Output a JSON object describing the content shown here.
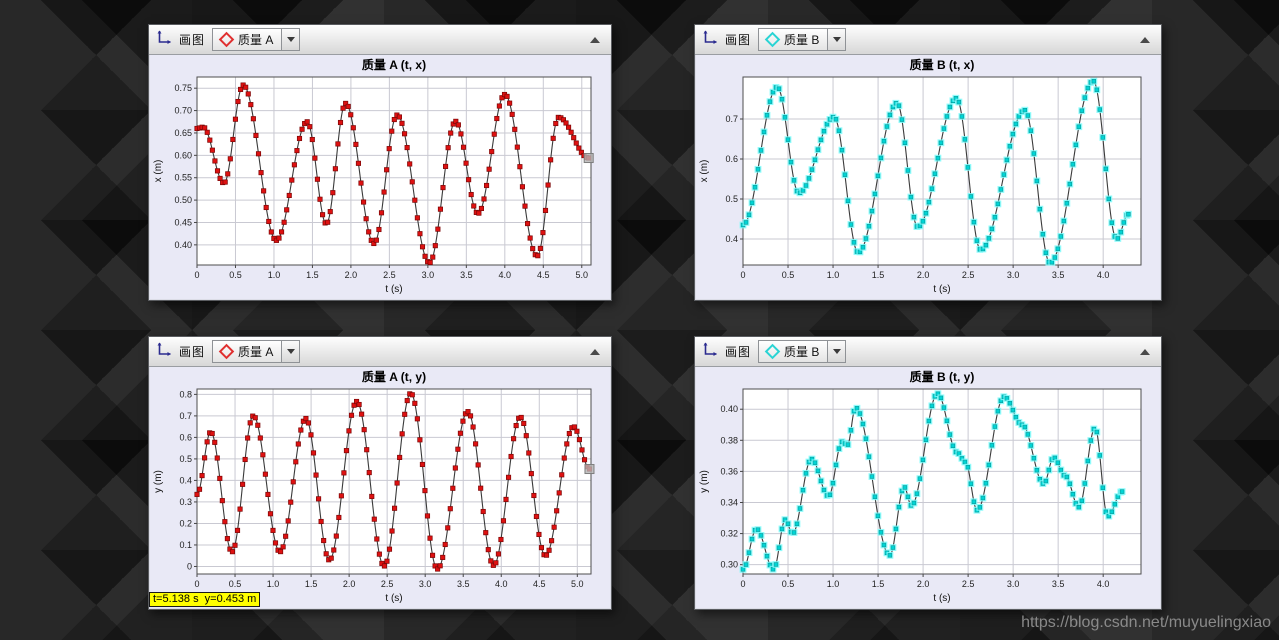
{
  "watermark": "https://blog.csdn.net/muyuelingxiao",
  "windows": [
    {
      "name": "mass-a-t-x",
      "toolbar": {
        "plot_label": "画图",
        "series_label": "质量 A",
        "series_color": "#e03030"
      },
      "tooltip_text": null,
      "chart": {
        "type": "line",
        "title": "质量 A (t, x)",
        "xlabel": "t (s)",
        "ylabel": "x (m)",
        "x_range": [
          0,
          5.12
        ],
        "y_range": [
          0.355,
          0.775
        ],
        "x_tick_vals": [
          0,
          0.5,
          1,
          1.5,
          2,
          2.5,
          3,
          3.5,
          4,
          4.5,
          5
        ],
        "x_tick_labels": [
          "0",
          "0.5",
          "1.0",
          "1.5",
          "2.0",
          "2.5",
          "3.0",
          "3.5",
          "4.0",
          "4.5",
          "5.0"
        ],
        "y_tick_vals": [
          0.4,
          0.45,
          0.5,
          0.55,
          0.6,
          0.65,
          0.7,
          0.75
        ],
        "y_tick_labels": [
          "0.40",
          "0.45",
          "0.50",
          "0.55",
          "0.60",
          "0.65",
          "0.70",
          "0.75"
        ],
        "marker_style": "red-square",
        "marker_step": 0.0333,
        "end_handle": true,
        "keypoints": [
          [
            0,
            0.66
          ],
          [
            0.08,
            0.663
          ],
          [
            0.35,
            0.538
          ],
          [
            0.6,
            0.757
          ],
          [
            1.03,
            0.41
          ],
          [
            1.43,
            0.675
          ],
          [
            1.68,
            0.447
          ],
          [
            1.93,
            0.716
          ],
          [
            2.3,
            0.403
          ],
          [
            2.6,
            0.69
          ],
          [
            3.02,
            0.36
          ],
          [
            3.36,
            0.676
          ],
          [
            3.65,
            0.47
          ],
          [
            4.0,
            0.736
          ],
          [
            4.42,
            0.375
          ],
          [
            4.7,
            0.685
          ],
          [
            5.09,
            0.594
          ]
        ]
      }
    },
    {
      "name": "mass-b-t-x",
      "toolbar": {
        "plot_label": "画图",
        "series_label": "质量 B",
        "series_color": "#2ad4d4"
      },
      "tooltip_text": null,
      "chart": {
        "type": "line",
        "title": "质量 B (t, x)",
        "xlabel": "t (s)",
        "ylabel": "x (m)",
        "x_range": [
          0,
          4.42
        ],
        "y_range": [
          0.335,
          0.805
        ],
        "x_tick_vals": [
          0,
          0.5,
          1,
          1.5,
          2,
          2.5,
          3,
          3.5,
          4
        ],
        "x_tick_labels": [
          "0",
          "0.5",
          "1.0",
          "1.5",
          "2.0",
          "2.5",
          "3.0",
          "3.5",
          "4.0"
        ],
        "y_tick_vals": [
          0.4,
          0.5,
          0.6,
          0.7
        ],
        "y_tick_labels": [
          "0.4",
          "0.5",
          "0.6",
          "0.7"
        ],
        "marker_style": "cyan-square",
        "marker_step": 0.0333,
        "end_handle": false,
        "keypoints": [
          [
            0,
            0.435
          ],
          [
            0.38,
            0.78
          ],
          [
            0.62,
            0.515
          ],
          [
            1.01,
            0.705
          ],
          [
            1.28,
            0.366
          ],
          [
            1.71,
            0.74
          ],
          [
            1.94,
            0.43
          ],
          [
            2.37,
            0.752
          ],
          [
            2.64,
            0.373
          ],
          [
            3.13,
            0.722
          ],
          [
            3.41,
            0.34
          ],
          [
            3.89,
            0.795
          ],
          [
            4.15,
            0.4
          ],
          [
            4.28,
            0.462
          ]
        ]
      }
    },
    {
      "name": "mass-a-t-y",
      "toolbar": {
        "plot_label": "画图",
        "series_label": "质量 A",
        "series_color": "#e03030"
      },
      "tooltip_text": "t=5.138 s  y=0.453 m",
      "chart": {
        "type": "line",
        "title": "质量 A (t, y)",
        "xlabel": "t (s)",
        "ylabel": "y (m)",
        "x_range": [
          0,
          5.18
        ],
        "y_range": [
          -0.035,
          0.825
        ],
        "x_tick_vals": [
          0,
          0.5,
          1,
          1.5,
          2,
          2.5,
          3,
          3.5,
          4,
          4.5,
          5
        ],
        "x_tick_labels": [
          "0",
          "0.5",
          "1.0",
          "1.5",
          "2.0",
          "2.5",
          "3.0",
          "3.5",
          "4.0",
          "4.5",
          "5.0"
        ],
        "y_tick_vals": [
          0,
          0.1,
          0.2,
          0.3,
          0.4,
          0.5,
          0.6,
          0.7,
          0.8
        ],
        "y_tick_labels": [
          "0",
          "0.1",
          "0.2",
          "0.3",
          "0.4",
          "0.5",
          "0.6",
          "0.7",
          "0.8"
        ],
        "marker_style": "red-square",
        "marker_step": 0.0333,
        "end_handle": true,
        "keypoints": [
          [
            0,
            0.335
          ],
          [
            0.18,
            0.625
          ],
          [
            0.46,
            0.068
          ],
          [
            0.74,
            0.7
          ],
          [
            1.09,
            0.068
          ],
          [
            1.43,
            0.688
          ],
          [
            1.74,
            0.03
          ],
          [
            2.1,
            0.767
          ],
          [
            2.46,
            0.002
          ],
          [
            2.81,
            0.805
          ],
          [
            3.16,
            -0.012
          ],
          [
            3.56,
            0.72
          ],
          [
            3.9,
            0.005
          ],
          [
            4.25,
            0.695
          ],
          [
            4.58,
            0.05
          ],
          [
            4.95,
            0.65
          ],
          [
            5.16,
            0.453
          ]
        ]
      }
    },
    {
      "name": "mass-b-t-y",
      "toolbar": {
        "plot_label": "画图",
        "series_label": "质量 B",
        "series_color": "#2ad4d4"
      },
      "tooltip_text": null,
      "chart": {
        "type": "line",
        "title": "质量 B (t, y)",
        "xlabel": "t (s)",
        "ylabel": "y (m)",
        "x_range": [
          0,
          4.42
        ],
        "y_range": [
          0.294,
          0.413
        ],
        "x_tick_vals": [
          0,
          0.5,
          1,
          1.5,
          2,
          2.5,
          3,
          3.5,
          4
        ],
        "x_tick_labels": [
          "0",
          "0.5",
          "1.0",
          "1.5",
          "2.0",
          "2.5",
          "3.0",
          "3.5",
          "4.0"
        ],
        "y_tick_vals": [
          0.3,
          0.32,
          0.34,
          0.36,
          0.38,
          0.4
        ],
        "y_tick_labels": [
          "0.30",
          "0.32",
          "0.34",
          "0.36",
          "0.38",
          "0.40"
        ],
        "marker_style": "cyan-square",
        "marker_step": 0.0333,
        "end_handle": false,
        "keypoints": [
          [
            0,
            0.297
          ],
          [
            0.15,
            0.323
          ],
          [
            0.34,
            0.297
          ],
          [
            0.47,
            0.329
          ],
          [
            0.55,
            0.32
          ],
          [
            0.76,
            0.368
          ],
          [
            0.95,
            0.344
          ],
          [
            1.1,
            0.379
          ],
          [
            1.16,
            0.377
          ],
          [
            1.25,
            0.401
          ],
          [
            1.63,
            0.306
          ],
          [
            1.79,
            0.35
          ],
          [
            1.87,
            0.338
          ],
          [
            2.16,
            0.41
          ],
          [
            2.38,
            0.372
          ],
          [
            2.47,
            0.366
          ],
          [
            2.6,
            0.335
          ],
          [
            2.9,
            0.408
          ],
          [
            3.1,
            0.39
          ],
          [
            3.34,
            0.352
          ],
          [
            3.45,
            0.369
          ],
          [
            3.58,
            0.357
          ],
          [
            3.73,
            0.337
          ],
          [
            3.91,
            0.388
          ],
          [
            4.05,
            0.331
          ],
          [
            4.21,
            0.347
          ]
        ]
      }
    }
  ],
  "chart_data": [
    {
      "type": "line",
      "title": "质量 A (t, x)",
      "series": "质量 A",
      "xlabel": "t (s)",
      "ylabel": "x (m)",
      "x_range": [
        0,
        5.12
      ],
      "y_range": [
        0.355,
        0.775
      ],
      "sample_interval_s": 0.033,
      "extrema_points_t_value": [
        [
          0,
          0.66
        ],
        [
          0.35,
          0.538
        ],
        [
          0.6,
          0.757
        ],
        [
          1.03,
          0.41
        ],
        [
          1.43,
          0.675
        ],
        [
          1.68,
          0.447
        ],
        [
          1.93,
          0.716
        ],
        [
          2.3,
          0.403
        ],
        [
          2.6,
          0.69
        ],
        [
          3.02,
          0.36
        ],
        [
          3.36,
          0.676
        ],
        [
          3.65,
          0.47
        ],
        [
          4.0,
          0.736
        ],
        [
          4.42,
          0.375
        ],
        [
          4.7,
          0.685
        ],
        [
          5.09,
          0.594
        ]
      ]
    },
    {
      "type": "line",
      "title": "质量 B (t, x)",
      "series": "质量 B",
      "xlabel": "t (s)",
      "ylabel": "x (m)",
      "x_range": [
        0,
        4.42
      ],
      "y_range": [
        0.335,
        0.805
      ],
      "sample_interval_s": 0.033,
      "extrema_points_t_value": [
        [
          0,
          0.435
        ],
        [
          0.38,
          0.78
        ],
        [
          0.62,
          0.515
        ],
        [
          1.01,
          0.705
        ],
        [
          1.28,
          0.366
        ],
        [
          1.71,
          0.74
        ],
        [
          1.94,
          0.43
        ],
        [
          2.37,
          0.752
        ],
        [
          2.64,
          0.373
        ],
        [
          3.13,
          0.722
        ],
        [
          3.41,
          0.34
        ],
        [
          3.89,
          0.795
        ],
        [
          4.15,
          0.4
        ],
        [
          4.28,
          0.462
        ]
      ]
    },
    {
      "type": "line",
      "title": "质量 A (t, y)",
      "series": "质量 A",
      "xlabel": "t (s)",
      "ylabel": "y (m)",
      "x_range": [
        0,
        5.18
      ],
      "y_range": [
        -0.035,
        0.825
      ],
      "sample_interval_s": 0.033,
      "extrema_points_t_value": [
        [
          0,
          0.335
        ],
        [
          0.18,
          0.625
        ],
        [
          0.46,
          0.068
        ],
        [
          0.74,
          0.7
        ],
        [
          1.09,
          0.068
        ],
        [
          1.43,
          0.688
        ],
        [
          1.74,
          0.03
        ],
        [
          2.1,
          0.767
        ],
        [
          2.46,
          0.002
        ],
        [
          2.81,
          0.805
        ],
        [
          3.16,
          -0.012
        ],
        [
          3.56,
          0.72
        ],
        [
          3.9,
          0.005
        ],
        [
          4.25,
          0.695
        ],
        [
          4.58,
          0.05
        ],
        [
          4.95,
          0.65
        ],
        [
          5.16,
          0.453
        ]
      ]
    },
    {
      "type": "line",
      "title": "质量 B (t, y)",
      "series": "质量 B",
      "xlabel": "t (s)",
      "ylabel": "y (m)",
      "x_range": [
        0,
        4.42
      ],
      "y_range": [
        0.294,
        0.413
      ],
      "sample_interval_s": 0.033,
      "extrema_points_t_value": [
        [
          0,
          0.297
        ],
        [
          0.15,
          0.323
        ],
        [
          0.34,
          0.297
        ],
        [
          0.47,
          0.329
        ],
        [
          0.55,
          0.32
        ],
        [
          0.76,
          0.368
        ],
        [
          0.95,
          0.344
        ],
        [
          1.1,
          0.379
        ],
        [
          1.16,
          0.377
        ],
        [
          1.25,
          0.401
        ],
        [
          1.63,
          0.306
        ],
        [
          1.79,
          0.35
        ],
        [
          1.87,
          0.338
        ],
        [
          2.16,
          0.41
        ],
        [
          2.38,
          0.372
        ],
        [
          2.47,
          0.366
        ],
        [
          2.6,
          0.335
        ],
        [
          2.9,
          0.408
        ],
        [
          3.1,
          0.39
        ],
        [
          3.34,
          0.352
        ],
        [
          3.45,
          0.369
        ],
        [
          3.58,
          0.357
        ],
        [
          3.73,
          0.337
        ],
        [
          3.91,
          0.388
        ],
        [
          4.05,
          0.331
        ],
        [
          4.21,
          0.347
        ]
      ]
    }
  ]
}
